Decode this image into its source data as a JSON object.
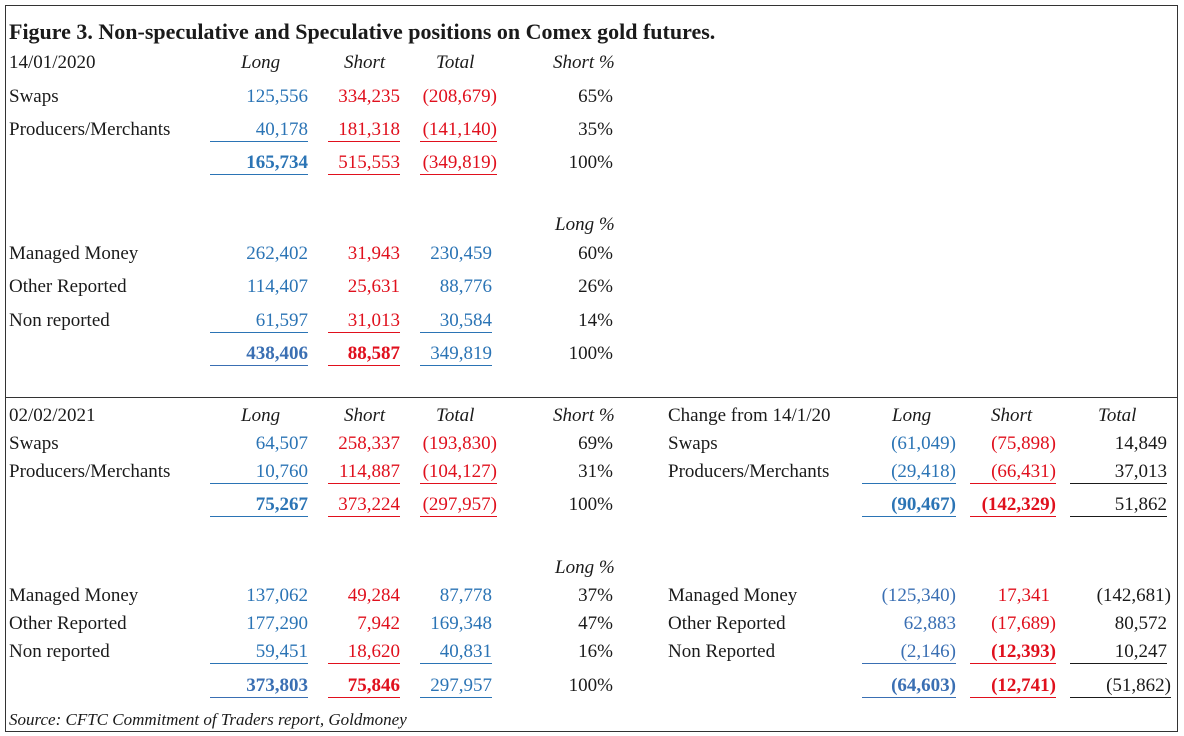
{
  "title": "Figure 3. Non-speculative and Speculative positions on Comex gold futures.",
  "source": "Source: CFTC Commitment of Traders report, Goldmoney",
  "colors": {
    "long": "#2b74b5",
    "short": "#e0101d",
    "text": "#1a1a1a"
  },
  "p2020": {
    "date": "14/01/2020",
    "h_long": "Long",
    "h_short": "Short",
    "h_total": "Total",
    "h_short_pct": "Short %",
    "h_long_pct": "Long %",
    "swaps": {
      "label": "Swaps",
      "long": "125,556",
      "short": "334,235",
      "total": "(208,679)",
      "pct": "65%"
    },
    "producers": {
      "label": "Producers/Merchants",
      "long": "40,178",
      "short": "181,318",
      "total": "(141,140)",
      "pct": "35%"
    },
    "ns_total": {
      "long": "165,734",
      "short": "515,553",
      "total": "(349,819)",
      "pct": "100%"
    },
    "managed": {
      "label": "Managed Money",
      "long": "262,402",
      "short": "31,943",
      "total": "230,459",
      "pct": "60%"
    },
    "other": {
      "label": "Other Reported",
      "long": "114,407",
      "short": "25,631",
      "total": "88,776",
      "pct": "26%"
    },
    "nonrep": {
      "label": "Non reported",
      "long": "61,597",
      "short": "31,013",
      "total": "30,584",
      "pct": "14%"
    },
    "sp_total": {
      "long": "438,406",
      "short": "88,587",
      "total": "349,819",
      "pct": "100%"
    }
  },
  "p2021": {
    "date": "02/02/2021",
    "h_long": "Long",
    "h_short": "Short",
    "h_total": "Total",
    "h_short_pct": "Short %",
    "h_long_pct": "Long %",
    "swaps": {
      "label": "Swaps",
      "long": "64,507",
      "short": "258,337",
      "total": "(193,830)",
      "pct": "69%"
    },
    "producers": {
      "label": "Producers/Merchants",
      "long": "10,760",
      "short": "114,887",
      "total": "(104,127)",
      "pct": "31%"
    },
    "ns_total": {
      "long": "75,267",
      "short": "373,224",
      "total": "(297,957)",
      "pct": "100%"
    },
    "managed": {
      "label": "Managed Money",
      "long": "137,062",
      "short": "49,284",
      "total": "87,778",
      "pct": "37%"
    },
    "other": {
      "label": "Other Reported",
      "long": "177,290",
      "short": "7,942",
      "total": "169,348",
      "pct": "47%"
    },
    "nonrep": {
      "label": "Non reported",
      "long": "59,451",
      "short": "18,620",
      "total": "40,831",
      "pct": "16%"
    },
    "sp_total": {
      "long": "373,803",
      "short": "75,846",
      "total": "297,957",
      "pct": "100%"
    }
  },
  "change": {
    "heading": "Change from 14/1/20",
    "h_long": "Long",
    "h_short": "Short",
    "h_total": "Total",
    "swaps": {
      "label": "Swaps",
      "long": "(61,049)",
      "short": "(75,898)",
      "total": "14,849"
    },
    "producers": {
      "label": "Producers/Merchants",
      "long": "(29,418)",
      "short": "(66,431)",
      "total": "37,013"
    },
    "ns_total": {
      "long": "(90,467)",
      "short": "(142,329)",
      "total": "51,862"
    },
    "managed": {
      "label": "Managed Money",
      "long": "(125,340)",
      "short": "17,341",
      "total": "(142,681)"
    },
    "other": {
      "label": "Other Reported",
      "long": "62,883",
      "short": "(17,689)",
      "total": "80,572"
    },
    "nonrep": {
      "label": "Non Reported",
      "long": "(2,146)",
      "short": "(12,393)",
      "total": "10,247"
    },
    "sp_total": {
      "long": "(64,603)",
      "short": "(12,741)",
      "total": "(51,862)"
    }
  }
}
